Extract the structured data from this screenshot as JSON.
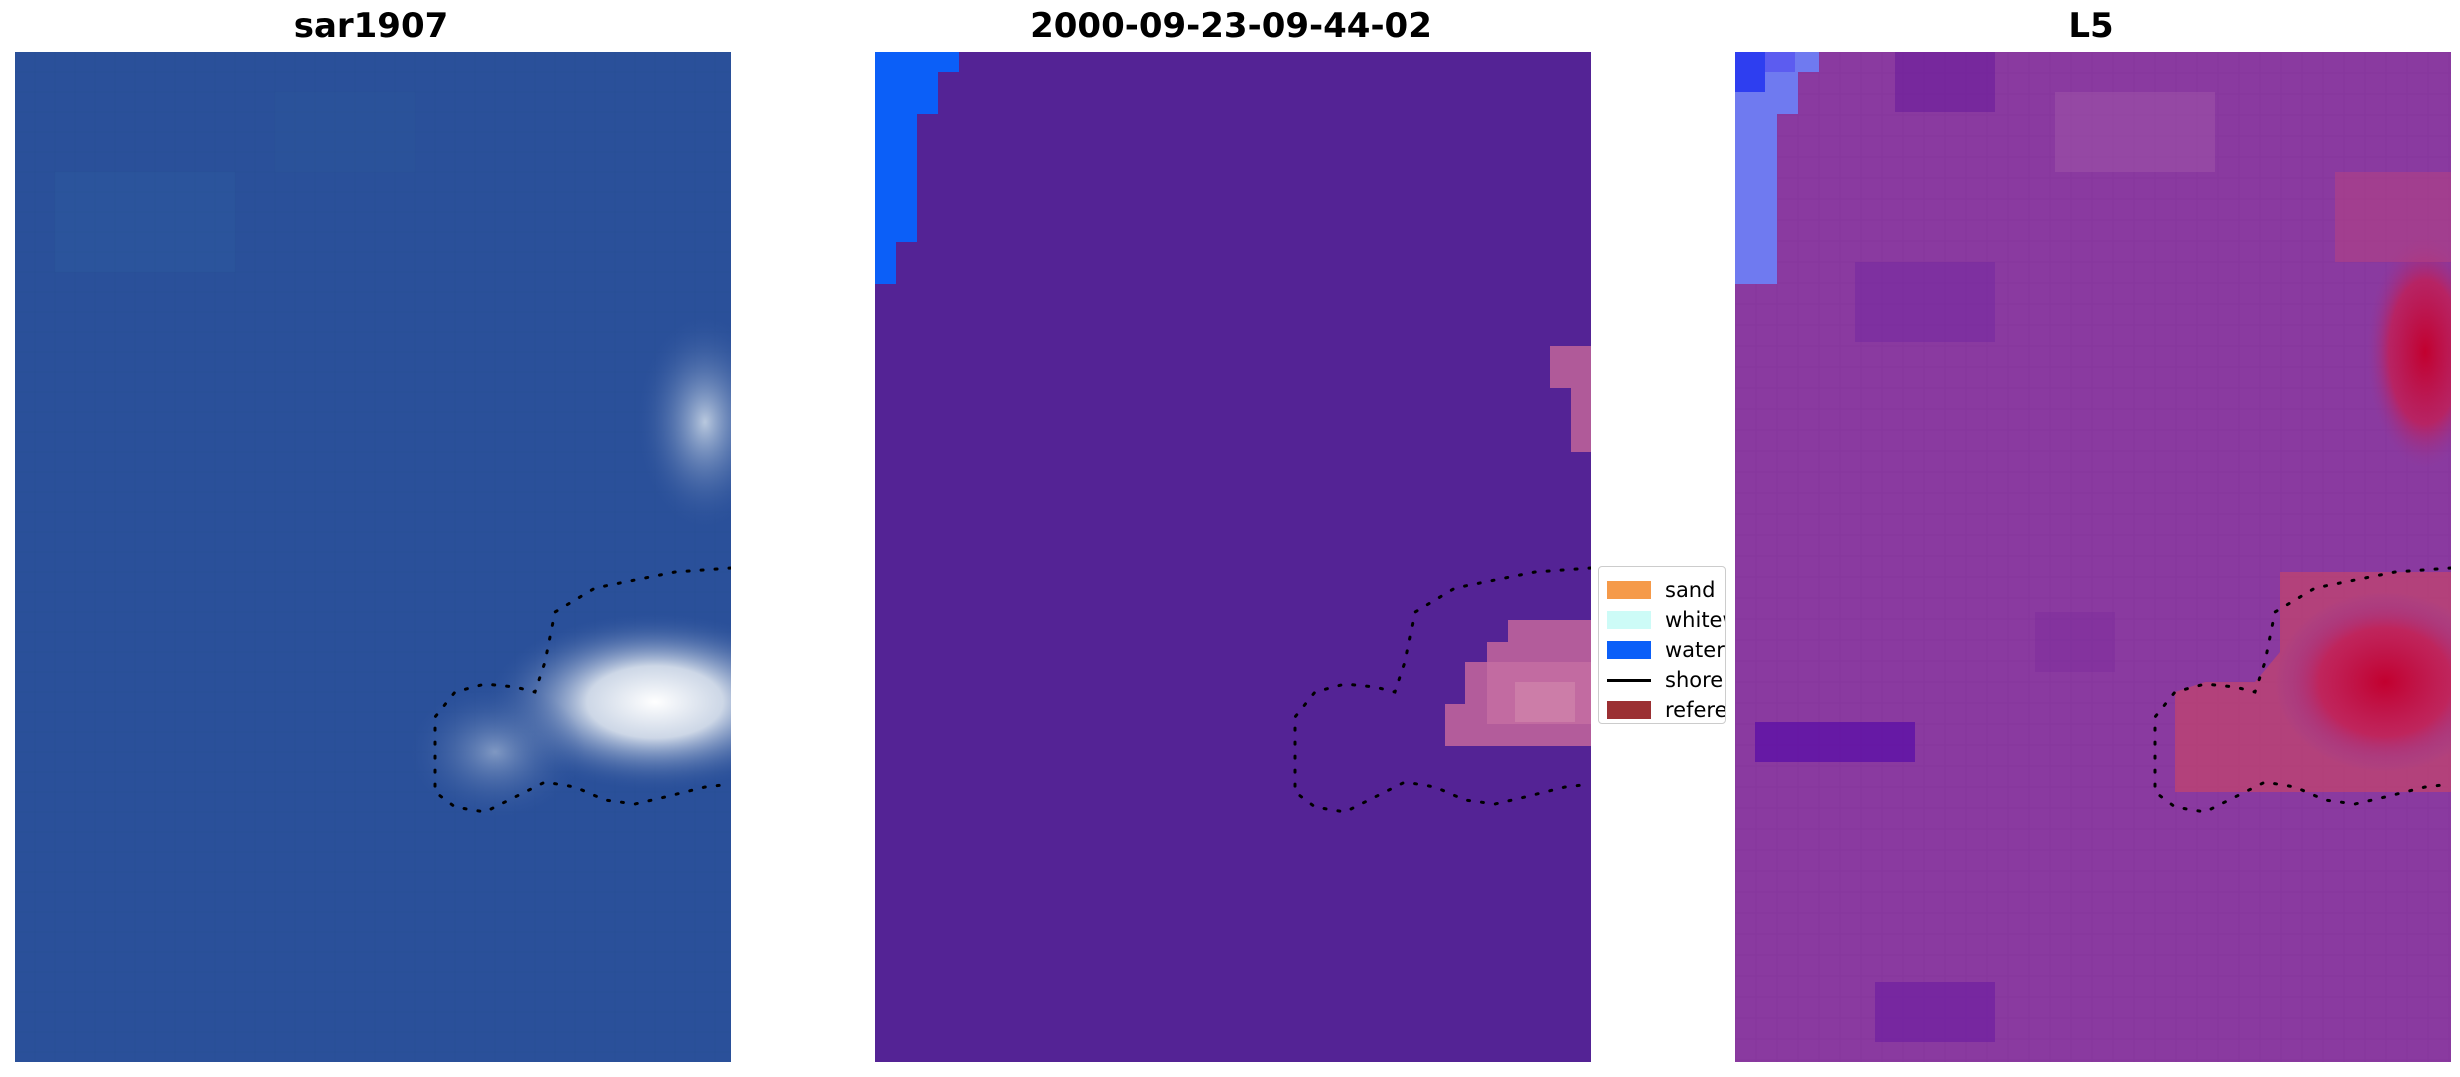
{
  "panels": [
    {
      "title": "sar1907",
      "icon": "satellite-rgb-image"
    },
    {
      "title": "2000-09-23-09-44-02",
      "icon": "classified-image"
    },
    {
      "title": "L5",
      "icon": "probability-heatmap-image"
    }
  ],
  "legend": {
    "items": [
      {
        "label": "sand",
        "color": "#f59a4a",
        "type": "patch"
      },
      {
        "label": "whitewater",
        "color": "#cdfbf7",
        "type": "patch"
      },
      {
        "label": "water",
        "color": "#0b5ff8",
        "type": "patch"
      },
      {
        "label": "shoreline",
        "color": "#000000",
        "type": "line"
      },
      {
        "label": "reference shoreline",
        "color": "#9b3033",
        "type": "patch"
      }
    ]
  },
  "colors": {
    "ocean_blue": "#2a509a",
    "class_background": "#542395",
    "class_water": "#0b5ff8",
    "class_whitewater_overlay": "#c96c9e",
    "heat_purple": "#8a3aa0",
    "heat_red": "#c2002f",
    "heat_blue": "#6f7af0"
  }
}
